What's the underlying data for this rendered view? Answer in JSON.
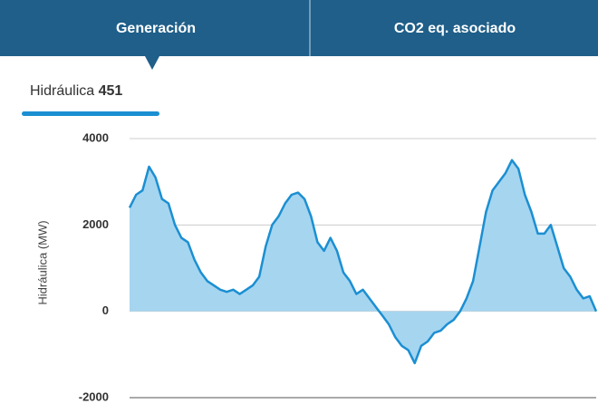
{
  "tabs": [
    "Generación",
    "CO2 eq. asociado"
  ],
  "selected": {
    "label": "Hidráulica",
    "value": 451
  },
  "chart_data": {
    "type": "area",
    "y_label": "Hidráulica (MW)",
    "ylim": [
      -2000,
      4000
    ],
    "yticks": [
      4000,
      2000,
      0,
      -2000
    ],
    "grid": true,
    "color": "#1b8fd2",
    "fill": "#a6d5f0",
    "values": [
      2400,
      2700,
      2800,
      3350,
      3100,
      2600,
      2500,
      2000,
      1700,
      1600,
      1200,
      900,
      700,
      600,
      500,
      450,
      500,
      400,
      500,
      600,
      800,
      1500,
      2000,
      2200,
      2500,
      2700,
      2750,
      2600,
      2200,
      1600,
      1400,
      1700,
      1400,
      900,
      700,
      400,
      500,
      300,
      100,
      -100,
      -300,
      -600,
      -800,
      -900,
      -1200,
      -800,
      -700,
      -500,
      -450,
      -300,
      -200,
      0,
      300,
      700,
      1500,
      2300,
      2800,
      3000,
      3200,
      3500,
      3300,
      2700,
      2300,
      1800,
      1800,
      2000,
      1500,
      1000,
      800,
      500,
      300,
      350,
      0
    ]
  }
}
